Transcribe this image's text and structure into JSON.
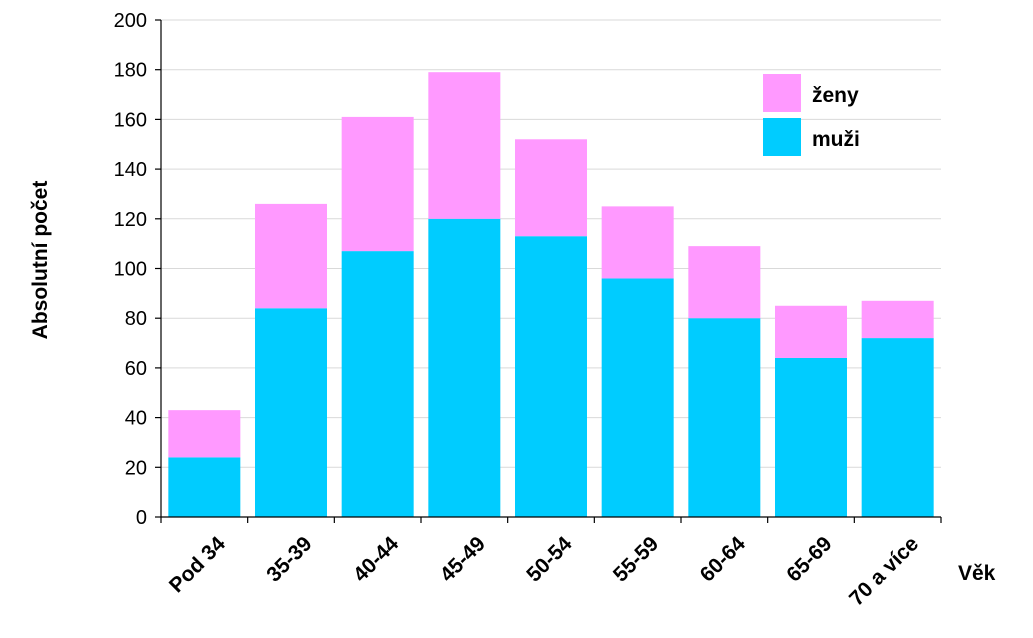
{
  "chart_data": {
    "type": "bar",
    "stacked": true,
    "categories": [
      "Pod 34",
      "35-39",
      "40-44",
      "45-49",
      "50-54",
      "55-59",
      "60-64",
      "65-69",
      "70 a více"
    ],
    "series": [
      {
        "name": "muži",
        "values": [
          24,
          84,
          107,
          120,
          113,
          96,
          80,
          64,
          72
        ],
        "color": "#00ccff"
      },
      {
        "name": "ženy",
        "values": [
          19,
          42,
          54,
          59,
          39,
          29,
          29,
          21,
          15
        ],
        "color": "#ff99ff"
      }
    ],
    "xlabel": "Věk",
    "ylabel": "Absolutní počet",
    "ylim": [
      0,
      200
    ],
    "yticks": [
      0,
      20,
      40,
      60,
      80,
      100,
      120,
      140,
      160,
      180,
      200
    ],
    "grid": true,
    "legend": {
      "position": "top-right",
      "order": [
        "ženy",
        "muži"
      ]
    }
  }
}
